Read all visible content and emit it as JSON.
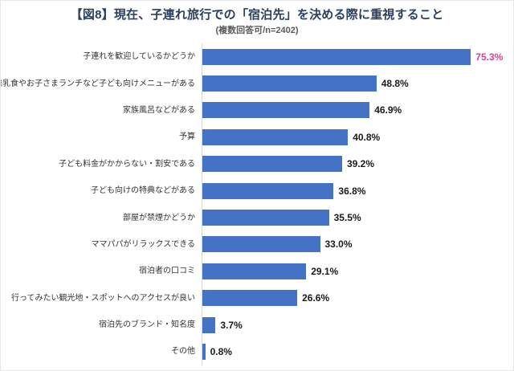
{
  "chart_data": {
    "type": "bar",
    "orientation": "horizontal",
    "title": "【図8】現在、子連れ旅行での「宿泊先」を決める際に重視すること",
    "subtitle": "(複数回答可/n=2402)",
    "categories": [
      "子連れを歓迎しているかどうか",
      "離乳食やお子さまランチなど子ども向けメニューがある",
      "家族風呂などがある",
      "予算",
      "子ども料金がかからない・割安である",
      "子ども向けの特典などがある",
      "部屋が禁煙かどうか",
      "ママパパがリラックスできる",
      "宿泊者の口コミ",
      "行ってみたい観光地・スポットへのアクセスが良い",
      "宿泊先のブランド・知名度",
      "その他"
    ],
    "values": [
      75.3,
      48.8,
      46.9,
      40.8,
      39.2,
      36.8,
      35.5,
      33.0,
      29.1,
      26.6,
      3.7,
      0.8
    ],
    "value_labels": [
      "75.3%",
      "48.8%",
      "46.9%",
      "40.8%",
      "39.2%",
      "36.8%",
      "35.5%",
      "33.0%",
      "29.1%",
      "26.6%",
      "3.7%",
      "0.8%"
    ],
    "xlim": [
      0,
      80
    ],
    "grid": "none",
    "legend": "none",
    "highlight_index": 0,
    "colors": {
      "bar": "#4472C4",
      "value_default": "#1A1A1A",
      "value_highlight": "#D6438D",
      "title": "#2B3F5E",
      "subtitle": "#595959",
      "category_label": "#333333",
      "axis_line": "#D6D6D6",
      "background": "#FFFFFF",
      "page_border": "#E6E6E6"
    }
  }
}
